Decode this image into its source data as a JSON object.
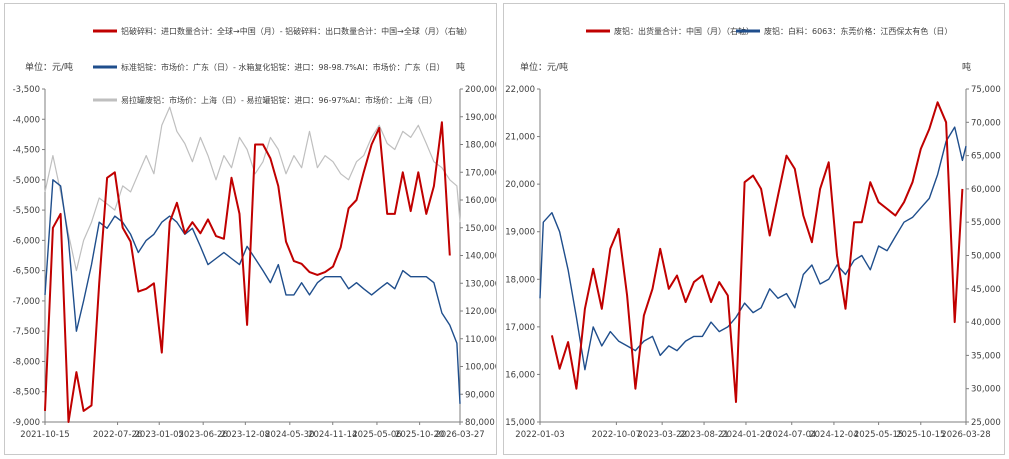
{
  "chart_data": [
    {
      "type": "line",
      "unit_left": "单位：元/吨",
      "unit_right": "吨",
      "legend": [
        "铝破碎料：进口数量合计：全球→中国（月）- 铝破碎料：出口数量合计：中国→全球（月）（右轴）",
        "标准铝锭：市场价：广东（日）- 水箱复化铝锭：进口：98-98.7%Al：市场价：广东（日）",
        "易拉罐废铝：市场价：上海（日）- 易拉罐铝锭：进口：96-97%Al：市场价：上海（日）"
      ],
      "x_ticks": [
        "2021-10-15",
        "2022-07-26",
        "2023-01-05",
        "2023-06-26",
        "2023-12-08",
        "2024-05-30",
        "2024-11-14",
        "2025-05-06",
        "2025-10-20",
        "2026-03-27"
      ],
      "y_left_ticks": [
        "-3,500",
        "-4,000",
        "-4,500",
        "-5,000",
        "-5,500",
        "-6,000",
        "-6,500",
        "-7,000",
        "-7,500",
        "-8,000",
        "-8,500",
        "-9,000"
      ],
      "y_right_ticks": [
        "200,000",
        "190,000",
        "180,000",
        "170,000",
        "160,000",
        "150,000",
        "140,000",
        "130,000",
        "120,000",
        "110,000",
        "100,000",
        "90,000",
        "80,000"
      ],
      "ylim_left": [
        -9000,
        -3500
      ],
      "ylim_right": [
        80000,
        200000
      ],
      "xlim": [
        "2021-10-15",
        "2026-03-27"
      ],
      "colors": [
        "#c00000",
        "#1f4e8c",
        "#bfbfbf"
      ],
      "series": [
        {
          "axis": "right",
          "x": [
            "2021-10-15",
            "2021-11-15",
            "2021-12-15",
            "2022-01-15",
            "2022-02-15",
            "2022-03-15",
            "2022-04-15",
            "2022-05-15",
            "2022-06-15",
            "2022-07-15",
            "2022-08-15",
            "2022-09-15",
            "2022-10-15",
            "2022-11-15",
            "2022-12-15",
            "2023-01-15",
            "2023-02-15",
            "2023-03-15",
            "2023-04-15",
            "2023-05-15",
            "2023-06-15",
            "2023-07-15",
            "2023-08-15",
            "2023-09-15",
            "2023-10-15",
            "2023-11-15",
            "2023-12-15",
            "2024-01-15",
            "2024-02-15",
            "2024-03-15",
            "2024-04-15",
            "2024-05-15",
            "2024-06-15",
            "2024-07-15",
            "2024-08-15",
            "2024-09-15",
            "2024-10-15",
            "2024-11-15",
            "2024-12-15",
            "2025-01-15",
            "2025-02-15",
            "2025-03-15",
            "2025-04-15",
            "2025-05-15",
            "2025-06-15",
            "2025-07-15",
            "2025-08-15",
            "2025-09-15",
            "2025-10-15",
            "2025-11-15",
            "2025-12-15",
            "2026-01-15",
            "2026-02-15"
          ],
          "values": [
            84000,
            150000,
            155000,
            80000,
            98000,
            84000,
            86000,
            130000,
            168000,
            170000,
            150000,
            145000,
            127000,
            128000,
            130000,
            105000,
            152000,
            159000,
            148000,
            152000,
            148000,
            153000,
            147000,
            146000,
            168000,
            155000,
            115000,
            180000,
            180000,
            175000,
            165000,
            145000,
            138000,
            137000,
            134000,
            133000,
            134000,
            136000,
            143000,
            157000,
            160000,
            170000,
            180000,
            186000,
            155000,
            155000,
            170000,
            156000,
            170000,
            155000,
            165000,
            188000,
            140000
          ]
        },
        {
          "axis": "left",
          "x": [
            "2021-10-15",
            "2021-11-15",
            "2021-12-15",
            "2022-01-15",
            "2022-02-15",
            "2022-03-15",
            "2022-04-15",
            "2022-05-15",
            "2022-06-15",
            "2022-07-15",
            "2022-08-15",
            "2022-09-15",
            "2022-10-15",
            "2022-11-15",
            "2022-12-15",
            "2023-01-15",
            "2023-02-15",
            "2023-03-15",
            "2023-04-15",
            "2023-05-15",
            "2023-06-15",
            "2023-07-15",
            "2023-08-15",
            "2023-09-15",
            "2023-10-15",
            "2023-11-15",
            "2023-12-15",
            "2024-01-15",
            "2024-02-15",
            "2024-03-15",
            "2024-04-15",
            "2024-05-15",
            "2024-06-15",
            "2024-07-15",
            "2024-08-15",
            "2024-09-15",
            "2024-10-15",
            "2024-11-15",
            "2024-12-15",
            "2025-01-15",
            "2025-02-15",
            "2025-03-15",
            "2025-04-15",
            "2025-05-15",
            "2025-06-15",
            "2025-07-15",
            "2025-08-15",
            "2025-09-15",
            "2025-10-15",
            "2025-11-15",
            "2025-12-15",
            "2026-01-15",
            "2026-02-15",
            "2026-03-15",
            "2026-03-27"
          ],
          "values": [
            -6900,
            -5000,
            -5100,
            -6000,
            -7500,
            -7000,
            -6400,
            -5700,
            -5800,
            -5600,
            -5700,
            -5900,
            -6200,
            -6000,
            -5900,
            -5700,
            -5600,
            -5700,
            -5900,
            -5800,
            -6100,
            -6400,
            -6300,
            -6200,
            -6300,
            -6400,
            -6100,
            -6300,
            -6500,
            -6700,
            -6400,
            -6900,
            -6900,
            -6700,
            -6900,
            -6700,
            -6600,
            -6600,
            -6600,
            -6800,
            -6700,
            -6800,
            -6900,
            -6800,
            -6700,
            -6800,
            -6500,
            -6600,
            -6600,
            -6600,
            -6700,
            -7200,
            -7400,
            -7700,
            -8700
          ]
        },
        {
          "axis": "left",
          "x": [
            "2021-10-15",
            "2021-11-15",
            "2021-12-15",
            "2022-01-15",
            "2022-02-15",
            "2022-03-15",
            "2022-04-15",
            "2022-05-15",
            "2022-06-15",
            "2022-07-15",
            "2022-08-15",
            "2022-09-15",
            "2022-10-15",
            "2022-11-15",
            "2022-12-15",
            "2023-01-15",
            "2023-02-15",
            "2023-03-15",
            "2023-04-15",
            "2023-05-15",
            "2023-06-15",
            "2023-07-15",
            "2023-08-15",
            "2023-09-15",
            "2023-10-15",
            "2023-11-15",
            "2023-12-15",
            "2024-01-15",
            "2024-02-15",
            "2024-03-15",
            "2024-04-15",
            "2024-05-15",
            "2024-06-15",
            "2024-07-15",
            "2024-08-15",
            "2024-09-15",
            "2024-10-15",
            "2024-11-15",
            "2024-12-15",
            "2025-01-15",
            "2025-02-15",
            "2025-03-15",
            "2025-04-15",
            "2025-05-15",
            "2025-06-15",
            "2025-07-15",
            "2025-08-15",
            "2025-09-15",
            "2025-10-15",
            "2025-11-15",
            "2025-12-15",
            "2026-01-15",
            "2026-02-15",
            "2026-03-15",
            "2026-03-27"
          ],
          "values": [
            -5200,
            -4600,
            -5200,
            -5900,
            -6500,
            -6000,
            -5700,
            -5300,
            -5400,
            -5500,
            -5100,
            -5200,
            -4900,
            -4600,
            -4900,
            -4100,
            -3800,
            -4200,
            -4400,
            -4700,
            -4300,
            -4600,
            -5000,
            -4600,
            -4800,
            -4300,
            -4500,
            -4900,
            -4700,
            -4300,
            -4500,
            -4900,
            -4600,
            -4800,
            -4200,
            -4800,
            -4600,
            -4700,
            -4900,
            -5000,
            -4700,
            -4600,
            -4300,
            -4100,
            -4400,
            -4500,
            -4200,
            -4300,
            -4100,
            -4400,
            -4700,
            -4800,
            -5000,
            -5100,
            -5700
          ]
        }
      ]
    },
    {
      "type": "line",
      "unit_left": "单位：元/吨",
      "unit_right": "吨",
      "legend": [
        "废铝：出货量合计：中国（月）（右轴）",
        "废铝：白料：6063：东莞价格：江西保太有色（日）"
      ],
      "x_ticks": [
        "2022-01-03",
        "2022-10-07",
        "2023-03-22",
        "2023-08-21",
        "2024-01-20",
        "2024-07-04",
        "2024-12-04",
        "2025-05-15",
        "2025-10-15",
        "2026-03-28"
      ],
      "y_left_ticks": [
        "22,000",
        "21,000",
        "20,000",
        "19,000",
        "18,000",
        "17,000",
        "16,000",
        "15,000"
      ],
      "y_right_ticks": [
        "75,000",
        "70,000",
        "65,000",
        "60,000",
        "55,000",
        "50,000",
        "45,000",
        "40,000",
        "35,000",
        "30,000",
        "25,000"
      ],
      "ylim_left": [
        15000,
        22000
      ],
      "ylim_right": [
        25000,
        75000
      ],
      "xlim": [
        "2022-01-03",
        "2026-03-28"
      ],
      "colors": [
        "#c00000",
        "#1f4e8c"
      ],
      "series": [
        {
          "axis": "right",
          "x": [
            "2022-02-15",
            "2022-03-15",
            "2022-04-15",
            "2022-05-15",
            "2022-06-15",
            "2022-07-15",
            "2022-08-15",
            "2022-09-15",
            "2022-10-15",
            "2022-11-15",
            "2022-12-15",
            "2023-01-15",
            "2023-02-15",
            "2023-03-15",
            "2023-04-15",
            "2023-05-15",
            "2023-06-15",
            "2023-07-15",
            "2023-08-15",
            "2023-09-15",
            "2023-10-15",
            "2023-11-15",
            "2023-12-15",
            "2024-01-15",
            "2024-02-15",
            "2024-03-15",
            "2024-04-15",
            "2024-05-15",
            "2024-06-15",
            "2024-07-15",
            "2024-08-15",
            "2024-09-15",
            "2024-10-15",
            "2024-11-15",
            "2024-12-15",
            "2025-01-15",
            "2025-02-15",
            "2025-03-15",
            "2025-04-15",
            "2025-05-15",
            "2025-06-15",
            "2025-07-15",
            "2025-08-15",
            "2025-09-15",
            "2025-10-15",
            "2025-11-15",
            "2025-12-15",
            "2026-01-15",
            "2026-02-15",
            "2026-03-15"
          ],
          "values": [
            38000,
            33000,
            37000,
            30000,
            42000,
            48000,
            42000,
            51000,
            54000,
            44000,
            30000,
            41000,
            45000,
            51000,
            45000,
            47000,
            43000,
            46000,
            47000,
            43000,
            46000,
            44000,
            28000,
            61000,
            62000,
            60000,
            53000,
            59000,
            65000,
            63000,
            56000,
            52000,
            60000,
            64000,
            50000,
            42000,
            55000,
            55000,
            61000,
            58000,
            57000,
            56000,
            58000,
            61000,
            66000,
            69000,
            73000,
            70000,
            40000,
            60000
          ]
        },
        {
          "axis": "left",
          "x": [
            "2022-01-03",
            "2022-01-15",
            "2022-02-15",
            "2022-03-15",
            "2022-04-15",
            "2022-05-15",
            "2022-06-15",
            "2022-07-15",
            "2022-08-15",
            "2022-09-15",
            "2022-10-15",
            "2022-11-15",
            "2022-12-15",
            "2023-01-15",
            "2023-02-15",
            "2023-03-15",
            "2023-04-15",
            "2023-05-15",
            "2023-06-15",
            "2023-07-15",
            "2023-08-15",
            "2023-09-15",
            "2023-10-15",
            "2023-11-15",
            "2023-12-15",
            "2024-01-15",
            "2024-02-15",
            "2024-03-15",
            "2024-04-15",
            "2024-05-15",
            "2024-06-15",
            "2024-07-15",
            "2024-08-15",
            "2024-09-15",
            "2024-10-15",
            "2024-11-15",
            "2024-12-15",
            "2025-01-15",
            "2025-02-15",
            "2025-03-15",
            "2025-04-15",
            "2025-05-15",
            "2025-06-15",
            "2025-07-15",
            "2025-08-15",
            "2025-09-15",
            "2025-10-15",
            "2025-11-15",
            "2025-12-15",
            "2026-01-15",
            "2026-02-15",
            "2026-03-15",
            "2026-03-28"
          ],
          "values": [
            17600,
            19200,
            19400,
            19000,
            18200,
            17200,
            16100,
            17000,
            16600,
            16900,
            16700,
            16600,
            16500,
            16700,
            16800,
            16400,
            16600,
            16500,
            16700,
            16800,
            16800,
            17100,
            16900,
            17000,
            17200,
            17500,
            17300,
            17400,
            17800,
            17600,
            17700,
            17400,
            18100,
            18300,
            17900,
            18000,
            18300,
            18100,
            18400,
            18500,
            18200,
            18700,
            18600,
            18900,
            19200,
            19300,
            19500,
            19700,
            20200,
            20900,
            21200,
            20500,
            20800
          ]
        }
      ]
    }
  ]
}
